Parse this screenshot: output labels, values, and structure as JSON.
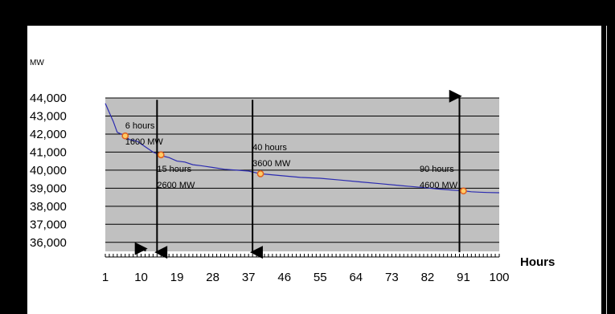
{
  "chart_data": {
    "type": "line",
    "title": "",
    "ylabel": "MW",
    "xlabel": "Hours",
    "ylim": [
      35500,
      44000
    ],
    "xlim": [
      1,
      100
    ],
    "y_ticks": [
      36000,
      37000,
      38000,
      39000,
      40000,
      41000,
      42000,
      43000,
      44000
    ],
    "y_tick_labels": [
      "36,000",
      "37,000",
      "38,000",
      "39,000",
      "40,000",
      "41,000",
      "42,000",
      "43,000",
      "44,000"
    ],
    "x_ticks": [
      1,
      10,
      19,
      28,
      37,
      46,
      55,
      64,
      73,
      82,
      91,
      100
    ],
    "x_tick_labels": [
      "1",
      "10",
      "19",
      "28",
      "37",
      "46",
      "55",
      "64",
      "73",
      "82",
      "91",
      "100"
    ],
    "grid": true,
    "series": [
      {
        "x": [
          1,
          2,
          3,
          4,
          5,
          6,
          7,
          9,
          10,
          12,
          13,
          14,
          15,
          16,
          17,
          19,
          21,
          23,
          25,
          28,
          31,
          34,
          37,
          40,
          45,
          50,
          55,
          60,
          65,
          70,
          75,
          80,
          85,
          88,
          91,
          93,
          95,
          97,
          100
        ],
        "values": [
          43700,
          43200,
          42700,
          42100,
          42000,
          41900,
          41700,
          41600,
          41450,
          41150,
          41000,
          40900,
          40850,
          40750,
          40700,
          40500,
          40450,
          40300,
          40250,
          40150,
          40050,
          40000,
          39950,
          39800,
          39700,
          39600,
          39550,
          39450,
          39350,
          39250,
          39150,
          39050,
          38950,
          38900,
          38850,
          38800,
          38780,
          38760,
          38750
        ]
      }
    ],
    "markers": [
      {
        "x": 6,
        "y": 41900
      },
      {
        "x": 15,
        "y": 40850
      },
      {
        "x": 40,
        "y": 39800
      },
      {
        "x": 91,
        "y": 38850
      }
    ],
    "vertical_arrows": [
      {
        "x": 14,
        "from": 43900,
        "to": 35450,
        "direction": "down"
      },
      {
        "x": 38,
        "from": 43900,
        "to": 35450,
        "direction": "down"
      },
      {
        "x": 90,
        "from": 35450,
        "to": 44100,
        "direction": "up"
      },
      {
        "x": 11,
        "from": 35500,
        "to": 35650,
        "direction": "up"
      }
    ],
    "annotations": [
      {
        "x": 6,
        "y": 42300,
        "line1": "6 hours",
        "line2": "1600 MW"
      },
      {
        "x": 14,
        "y": 39900,
        "line1": "15 hours",
        "line2": "2600 MW"
      },
      {
        "x": 38,
        "y": 41100,
        "line1": "40 hours",
        "line2": "3600 MW"
      },
      {
        "x": 80,
        "y": 39900,
        "line1": "90 hours",
        "line2": "4600 MW"
      }
    ],
    "colors": {
      "plot_area": "#c0c0c0",
      "line": "#2b2bb0",
      "marker_fill": "#ffcc66",
      "marker_stroke": "#e06020",
      "arrow": "#000000"
    }
  }
}
